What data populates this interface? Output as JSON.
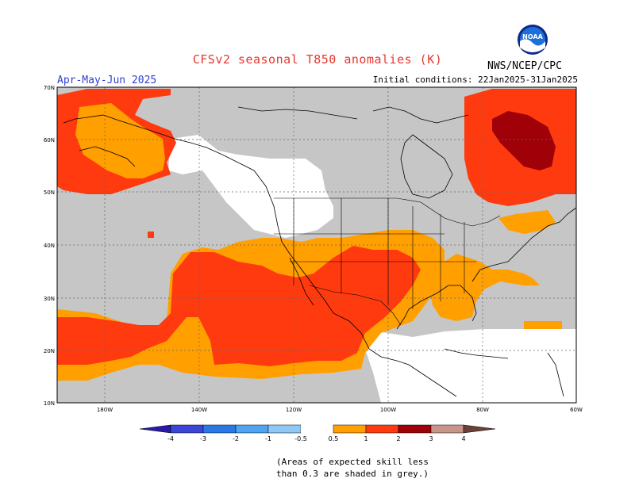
{
  "header": {
    "title": "CFSv2 seasonal T850 anomalies (K)",
    "season": "Apr-May-Jun 2025",
    "initial_conditions": "Initial conditions: 22Jan2025-31Jan2025",
    "agency": "NWS/NCEP/CPC",
    "logo_text": "NOAA"
  },
  "map": {
    "lat_labels": [
      "70N",
      "60N",
      "50N",
      "40N",
      "30N",
      "20N",
      "10N"
    ],
    "lon_labels": [
      "180W",
      "140W",
      "120W",
      "100W",
      "80W",
      "60W"
    ],
    "colors": {
      "grey": "#c6c6c6",
      "orange": "#ff9f00",
      "red": "#ff3a0e",
      "darkred": "#a00008",
      "white": "#ffffff"
    }
  },
  "legend": {
    "labels": [
      "-4",
      "-3",
      "-2",
      "-1",
      "-0.5",
      "0.5",
      "1",
      "2",
      "3",
      "4"
    ],
    "colors": [
      "#2a1aa8",
      "#3b46d8",
      "#2a78e6",
      "#4ea4f0",
      "#8ec8f7",
      "#ffffff",
      "#ff9f00",
      "#ff3a0e",
      "#a00008",
      "#c7958a",
      "#6b4036"
    ]
  },
  "footnote": {
    "line1": "(Areas of expected skill less",
    "line2": "than 0.3 are shaded in grey.)"
  }
}
